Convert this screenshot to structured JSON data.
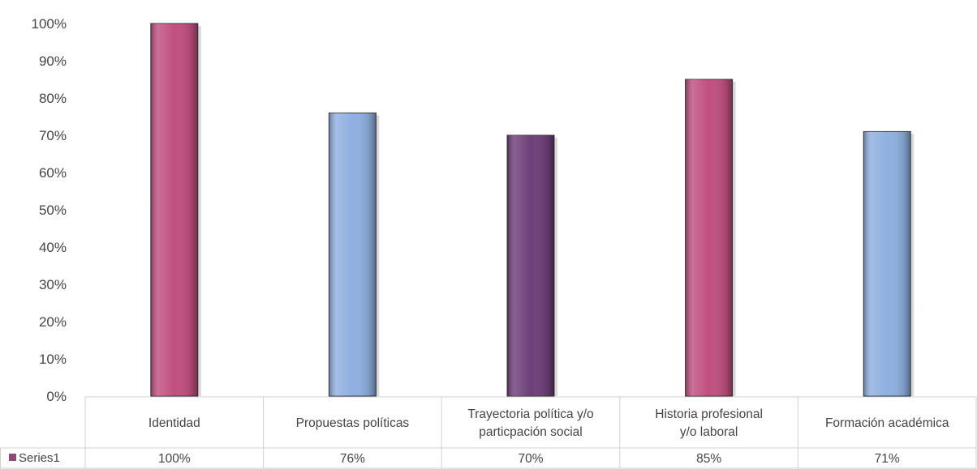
{
  "chart_data": {
    "type": "bar",
    "categories": [
      "Identidad",
      "Propuestas políticas",
      "Trayectoria política y/o particpación social",
      "Historia profesional y/o laboral",
      "Formación académica"
    ],
    "category_lines": [
      [
        "Identidad"
      ],
      [
        "Propuestas políticas"
      ],
      [
        "Trayectoria política y/o",
        "particpación social"
      ],
      [
        "Historia profesional",
        "y/o laboral"
      ],
      [
        "Formación académica"
      ]
    ],
    "series": [
      {
        "name": "Series1",
        "values": [
          1.0,
          0.76,
          0.7,
          0.85,
          0.71
        ],
        "value_labels": [
          "100%",
          "76%",
          "70%",
          "85%",
          "71%"
        ]
      }
    ],
    "bar_colors": [
      "#c0507f",
      "#8fb0e0",
      "#6e3f78",
      "#c0507f",
      "#8fb0e0"
    ],
    "legend_color": "#8e4a72",
    "yticks": [
      "0%",
      "10%",
      "20%",
      "30%",
      "40%",
      "50%",
      "60%",
      "70%",
      "80%",
      "90%",
      "100%"
    ],
    "ylim": [
      0,
      1
    ],
    "data_table": true,
    "legend": "in-data-table"
  }
}
